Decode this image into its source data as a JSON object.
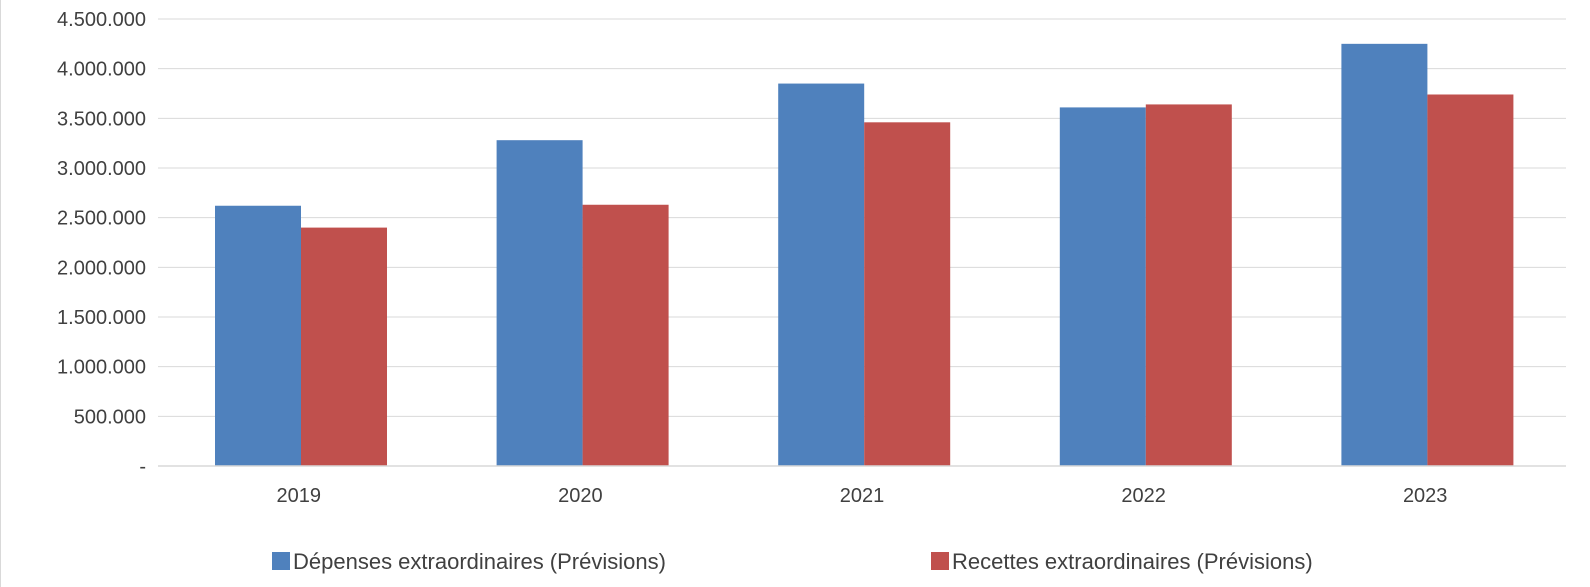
{
  "chart_data": {
    "type": "bar",
    "title": "",
    "xlabel": "",
    "ylabel": "",
    "categories": [
      "2019",
      "2020",
      "2021",
      "2022",
      "2023"
    ],
    "series": [
      {
        "name": "Dépenses extraordinaires (Prévisions)",
        "color": "#4f81bd",
        "values": [
          2620000,
          3280000,
          3850000,
          3610000,
          4250000
        ]
      },
      {
        "name": "Recettes extraordinaires (Prévisions)",
        "color": "#c0504d",
        "values": [
          2400000,
          2630000,
          3460000,
          3640000,
          3740000
        ]
      }
    ],
    "ylim": [
      0,
      4500000
    ],
    "yticks": [
      {
        "value": 0,
        "label": "-"
      },
      {
        "value": 500000,
        "label": "500.000"
      },
      {
        "value": 1000000,
        "label": "1.000.000"
      },
      {
        "value": 1500000,
        "label": "1.500.000"
      },
      {
        "value": 2000000,
        "label": "2.000.000"
      },
      {
        "value": 2500000,
        "label": "2.500.000"
      },
      {
        "value": 3000000,
        "label": "3.000.000"
      },
      {
        "value": 3500000,
        "label": "3.500.000"
      },
      {
        "value": 4000000,
        "label": "4.000.000"
      },
      {
        "value": 4500000,
        "label": "4.500.000"
      }
    ],
    "grid": true,
    "legend_position": "bottom"
  },
  "colors": {
    "gridline": "#d9d9d9",
    "axis": "#d9d9d9",
    "text": "#404040"
  }
}
